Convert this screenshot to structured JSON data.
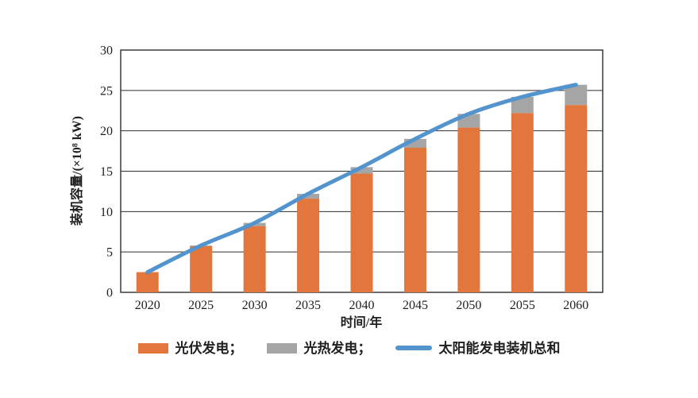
{
  "figure": {
    "background": "#ffffff",
    "text_color": "#1f1f1f",
    "grid_color": "#2e2e2e"
  },
  "chart_data": {
    "type": "bar",
    "stacked": true,
    "overlay": "line",
    "title": "",
    "xlabel": "时间/年",
    "ylabel": "装机容量/(×10⁸ kW)",
    "categories": [
      "2020",
      "2025",
      "2030",
      "2035",
      "2040",
      "2045",
      "2050",
      "2055",
      "2060"
    ],
    "series": [
      {
        "name": "光伏发电",
        "type": "bar",
        "color": "#E2763C",
        "values": [
          2.5,
          5.7,
          8.2,
          11.6,
          14.7,
          17.9,
          20.4,
          22.2,
          23.2
        ]
      },
      {
        "name": "光热发电",
        "type": "bar",
        "color": "#A5A5A5",
        "values": [
          0.0,
          0.1,
          0.4,
          0.6,
          0.8,
          1.1,
          1.7,
          2.0,
          2.5
        ]
      },
      {
        "name": "太阳能发电装机总和",
        "type": "line",
        "color": "#5494CE",
        "values": [
          2.5,
          5.8,
          8.6,
          12.2,
          15.5,
          19.0,
          22.1,
          24.2,
          25.7
        ]
      }
    ],
    "ylim": [
      0,
      30
    ],
    "yticks": [
      0,
      5,
      10,
      15,
      20,
      25,
      30
    ],
    "grid": true,
    "legend_position": "bottom",
    "legend_labels": [
      "光伏发电；",
      "光热发电；",
      "太阳能发电装机总和"
    ]
  }
}
